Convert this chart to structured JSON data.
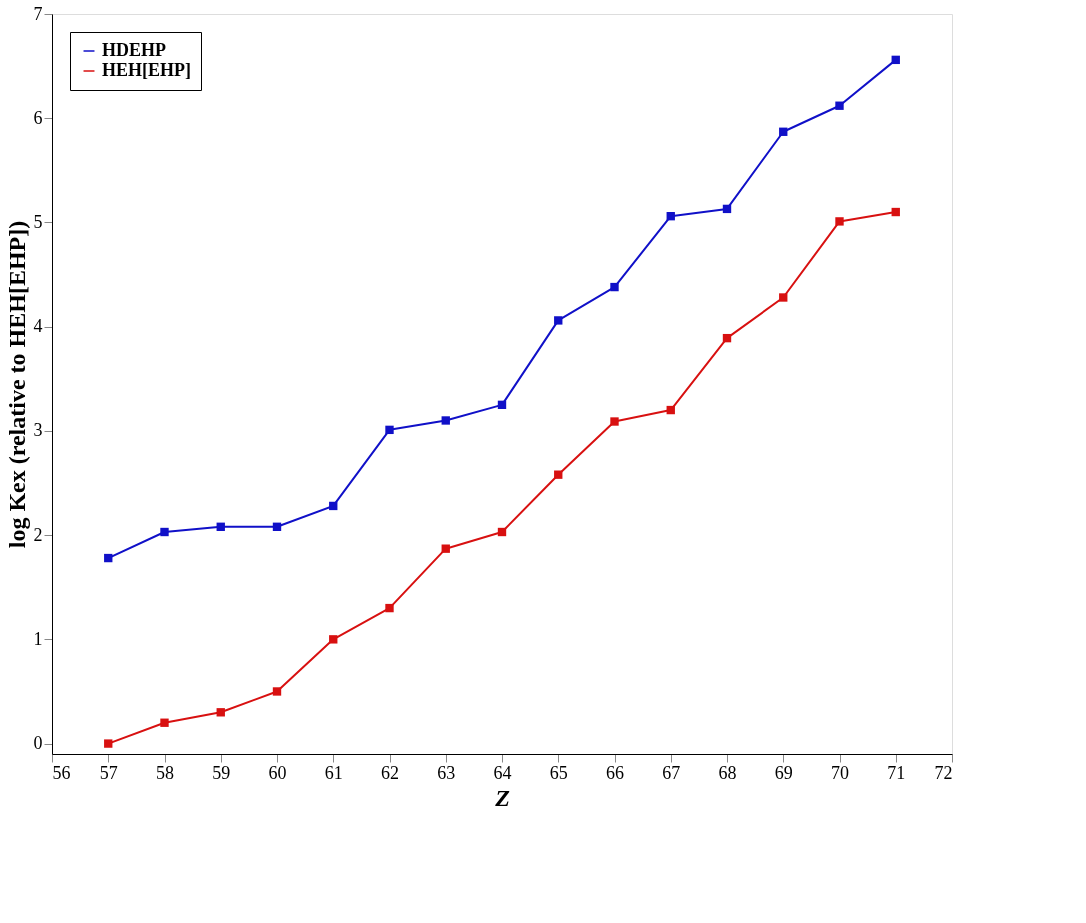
{
  "chart_data": {
    "type": "line",
    "xlabel": "Z",
    "ylabel": "log Kex (relative to HEH[EHP])",
    "x": [
      57,
      58,
      59,
      60,
      61,
      62,
      63,
      64,
      65,
      66,
      67,
      68,
      69,
      70,
      71
    ],
    "series": [
      {
        "name": "HDEHP",
        "color": "#1010c8",
        "values": [
          1.78,
          2.03,
          2.08,
          2.08,
          2.28,
          3.01,
          3.1,
          3.25,
          4.06,
          4.38,
          5.06,
          5.13,
          5.87,
          6.12,
          6.56
        ]
      },
      {
        "name": "HEH[EHP]",
        "color": "#d81010",
        "values": [
          0,
          0.2,
          0.3,
          0.5,
          1.0,
          1.3,
          1.87,
          2.03,
          2.58,
          3.09,
          3.2,
          3.89,
          4.28,
          5.01,
          5.1
        ]
      }
    ],
    "xlim": [
      56,
      72
    ],
    "xticks": [
      56,
      57,
      58,
      59,
      60,
      61,
      62,
      63,
      64,
      65,
      66,
      67,
      68,
      69,
      70,
      71,
      72
    ],
    "ylim": [
      -0.1,
      7
    ],
    "yticks": [
      0,
      1,
      2,
      3,
      4,
      5,
      6,
      7
    ],
    "grid": false,
    "legend": "top left",
    "marker": "square",
    "line_style": "solid"
  }
}
